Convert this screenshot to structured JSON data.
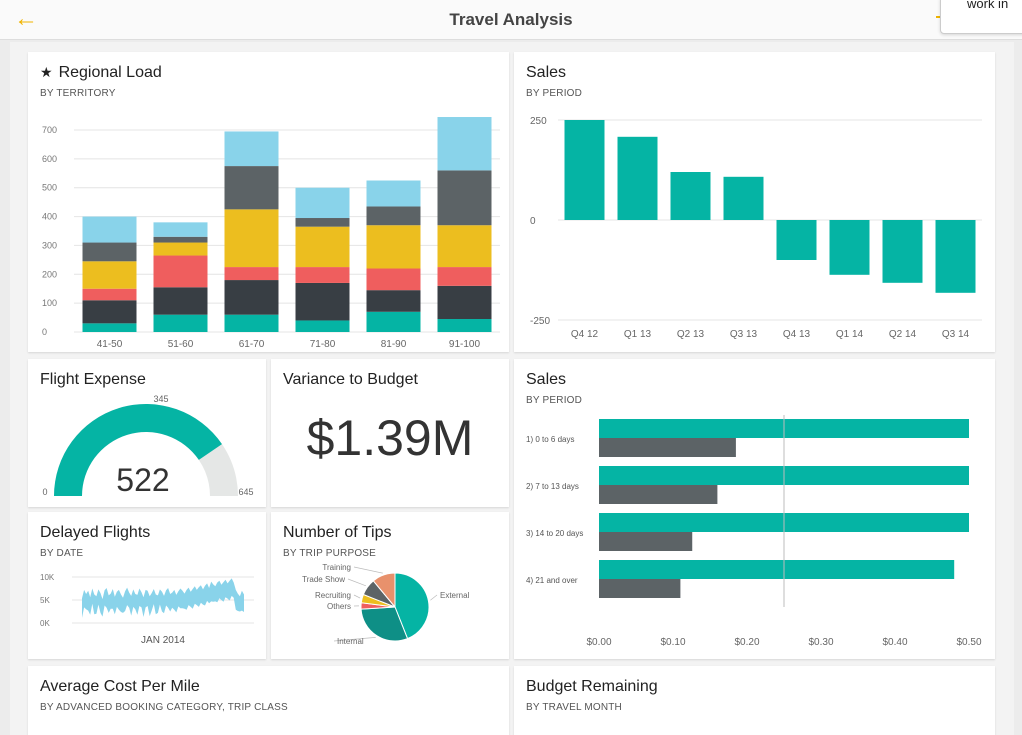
{
  "header": {
    "back_icon": "←",
    "title": "Travel Analysis",
    "popover_text": "work in"
  },
  "colors": {
    "teal": "#05b4a4",
    "dark": "#383e44",
    "red": "#ef5e5e",
    "yellow": "#ecbe1f",
    "gray": "#5c6366",
    "light_blue": "#89d3ea",
    "light_gray": "#e5e7e6"
  },
  "regional_load": {
    "star": "★",
    "title": "Regional Load",
    "subtitle": "BY TERRITORY",
    "chart_data": {
      "type": "bar",
      "stacked": true,
      "categories": [
        "41-50",
        "51-60",
        "61-70",
        "71-80",
        "81-90",
        "91-100"
      ],
      "series": [
        {
          "name": "teal",
          "values": [
            30,
            60,
            60,
            40,
            70,
            45
          ]
        },
        {
          "name": "dark",
          "values": [
            80,
            95,
            120,
            130,
            75,
            115
          ]
        },
        {
          "name": "red",
          "values": [
            40,
            110,
            45,
            55,
            75,
            65
          ]
        },
        {
          "name": "yellow",
          "values": [
            95,
            45,
            200,
            140,
            150,
            145
          ]
        },
        {
          "name": "gray",
          "values": [
            65,
            20,
            150,
            30,
            65,
            190
          ]
        },
        {
          "name": "light_blue",
          "values": [
            90,
            50,
            120,
            105,
            90,
            185
          ]
        }
      ],
      "ylim": [
        0,
        700
      ],
      "yticks": [
        0,
        100,
        200,
        300,
        400,
        500,
        600,
        700
      ]
    }
  },
  "sales_period": {
    "title": "Sales",
    "subtitle": "BY PERIOD",
    "chart_data": {
      "type": "bar",
      "categories": [
        "Q4 12",
        "Q1 13",
        "Q2 13",
        "Q3 13",
        "Q4 13",
        "Q1 14",
        "Q2 14",
        "Q3 14"
      ],
      "values": [
        250,
        208,
        120,
        108,
        -100,
        -137,
        -157,
        -182
      ],
      "ylim": [
        -250,
        250
      ],
      "yticks": [
        250,
        0,
        -250
      ]
    }
  },
  "flight_expense": {
    "title": "Flight Expense",
    "chart_data": {
      "type": "gauge",
      "value": 522,
      "min": 0,
      "max": 645,
      "target": 345
    },
    "value_label": "522",
    "min_label": "0",
    "max_label": "645",
    "target_label": "345"
  },
  "variance": {
    "title": "Variance to Budget",
    "value": "$1.39M"
  },
  "sales_horizontal": {
    "title": "Sales",
    "subtitle": "BY PERIOD",
    "chart_data": {
      "type": "bar",
      "orientation": "horizontal",
      "categories": [
        "1) 0 to 6 days",
        "2) 7 to 13 days",
        "3) 14 to 20 days",
        "4) 21 and over"
      ],
      "series": [
        {
          "name": "teal",
          "values": [
            0.5,
            0.5,
            0.5,
            0.48
          ]
        },
        {
          "name": "gray",
          "values": [
            0.185,
            0.16,
            0.126,
            0.11
          ]
        }
      ],
      "reference_line": 0.25,
      "xlim": [
        0,
        0.5
      ],
      "xticks": [
        "$0.00",
        "$0.10",
        "$0.20",
        "$0.30",
        "$0.40",
        "$0.50"
      ]
    }
  },
  "delayed_flights": {
    "title": "Delayed Flights",
    "subtitle": "BY DATE",
    "chart_data": {
      "type": "area",
      "yticks": [
        "10K",
        "5K",
        "0K"
      ],
      "ylim": [
        0,
        10
      ],
      "xlabel": "JAN 2014",
      "values": [
        4.2,
        6.0,
        5.1,
        5.8,
        4.4,
        6.3,
        5.0,
        4.6,
        6.1,
        5.3,
        4.0,
        5.9,
        6.4,
        4.8,
        5.2,
        6.2,
        4.5,
        5.6,
        6.0,
        5.0,
        4.3,
        5.7,
        6.5,
        5.4,
        4.7,
        6.1,
        5.1,
        4.9,
        6.3,
        5.5,
        4.4,
        6.0,
        5.8,
        4.6,
        5.3,
        6.2,
        5.0,
        4.8,
        6.1,
        5.6,
        4.7,
        5.9,
        6.4,
        5.1,
        5.4,
        6.0,
        4.9,
        5.7,
        6.3,
        5.8,
        5.2,
        6.0,
        6.5,
        5.6,
        6.2,
        6.8,
        6.0,
        6.6,
        7.0,
        6.1,
        6.9,
        7.4,
        6.4,
        7.8,
        7.2,
        6.8,
        7.6,
        8.0,
        7.1,
        7.7,
        8.2,
        7.4,
        8.0,
        8.5,
        7.6,
        6.0,
        5.2,
        4.6,
        5.8,
        5.0
      ]
    }
  },
  "tips": {
    "title": "Number of Tips",
    "subtitle": "BY TRIP PURPOSE",
    "chart_data": {
      "type": "pie",
      "slices": [
        {
          "label": "External",
          "value": 44
        },
        {
          "label": "Internal",
          "value": 30
        },
        {
          "label": "Others",
          "value": 3
        },
        {
          "label": "Recruiting",
          "value": 4
        },
        {
          "label": "Trade Show",
          "value": 8
        },
        {
          "label": "Training",
          "value": 11
        }
      ]
    }
  },
  "avg_cost": {
    "title": "Average Cost Per Mile",
    "subtitle": "BY ADVANCED BOOKING CATEGORY, TRIP CLASS"
  },
  "budget_remaining": {
    "title": "Budget Remaining",
    "subtitle": "BY TRAVEL MONTH"
  }
}
